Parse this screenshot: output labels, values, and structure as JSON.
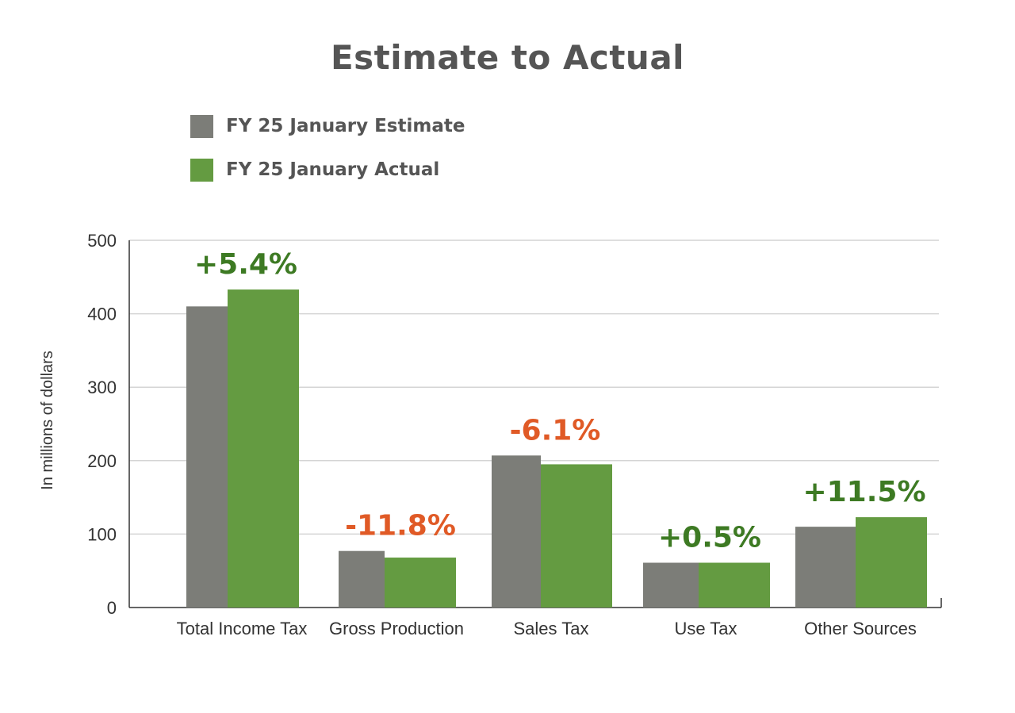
{
  "chart_data": {
    "type": "bar",
    "title": "Estimate to Actual",
    "ylabel": "In millions of dollars",
    "xlabel": "",
    "ylim": [
      0,
      500
    ],
    "yticks": [
      0,
      100,
      200,
      300,
      400,
      500
    ],
    "grid": true,
    "legend_position": "top-left",
    "categories": [
      "Total Income Tax",
      "Gross Production",
      "Sales Tax",
      "Use Tax",
      "Other Sources"
    ],
    "series": [
      {
        "name": "FY 25 January Estimate",
        "color": "#7c7d78",
        "values": [
          410,
          77,
          207,
          61,
          110
        ]
      },
      {
        "name": "FY 25 January Actual",
        "color": "#649b41",
        "values": [
          433,
          68,
          195,
          61,
          123
        ]
      }
    ],
    "annotations": [
      {
        "text": "+5.4%",
        "color": "#3d7a23"
      },
      {
        "text": "-11.8%",
        "color": "#e05a26"
      },
      {
        "text": "-6.1%",
        "color": "#e05a26"
      },
      {
        "text": "+0.5%",
        "color": "#3d7a23"
      },
      {
        "text": "+11.5%",
        "color": "#3d7a23"
      }
    ]
  }
}
